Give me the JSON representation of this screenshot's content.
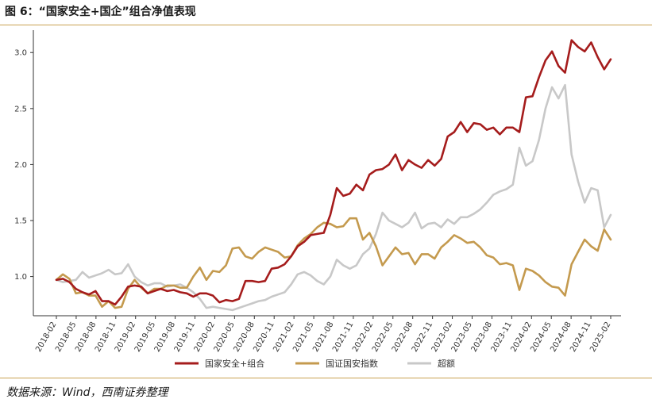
{
  "figure": {
    "title": "图 6：“国家安全+国企”组合净值表现",
    "source": "数据来源：Wind，西南证券整理"
  },
  "chart_data": {
    "type": "line",
    "title": "",
    "xlabel": "",
    "ylabel": "",
    "ylim": [
      0.65,
      3.2
    ],
    "yticks": [
      1.0,
      1.5,
      2.0,
      2.5,
      3.0
    ],
    "ytick_labels": [
      "1.0",
      "1.5",
      "2.0",
      "2.5",
      "3.0"
    ],
    "xtick_labels": [
      "2018-02",
      "2018-05",
      "2018-08",
      "2018-11",
      "2019-02",
      "2019-05",
      "2019-08",
      "2019-11",
      "2020-02",
      "2020-05",
      "2020-08",
      "2020-11",
      "2021-02",
      "2021-05",
      "2021-08",
      "2021-11",
      "2022-02",
      "2022-05",
      "2022-08",
      "2022-11",
      "2023-02",
      "2023-05",
      "2023-08",
      "2023-11",
      "2024-02",
      "2024-05",
      "2024-08",
      "2024-11",
      "2025-02"
    ],
    "grid": false,
    "legend_position": "bottom",
    "series": [
      {
        "name": "国家安全+组合",
        "color": "#a51c1c",
        "values": [
          0.97,
          0.98,
          0.95,
          0.89,
          0.86,
          0.84,
          0.87,
          0.78,
          0.78,
          0.75,
          0.82,
          0.91,
          0.92,
          0.91,
          0.85,
          0.87,
          0.89,
          0.87,
          0.88,
          0.86,
          0.85,
          0.82,
          0.85,
          0.85,
          0.83,
          0.77,
          0.79,
          0.78,
          0.8,
          0.96,
          0.96,
          0.95,
          0.96,
          1.07,
          1.08,
          1.11,
          1.18,
          1.27,
          1.31,
          1.37,
          1.38,
          1.39,
          1.55,
          1.79,
          1.72,
          1.74,
          1.82,
          1.77,
          1.91,
          1.95,
          1.96,
          2.0,
          2.09,
          1.95,
          2.04,
          2.0,
          1.97,
          2.04,
          1.99,
          2.05,
          2.25,
          2.29,
          2.38,
          2.29,
          2.37,
          2.36,
          2.31,
          2.33,
          2.27,
          2.33,
          2.33,
          2.29,
          2.6,
          2.61,
          2.78,
          2.93,
          3.01,
          2.88,
          2.82,
          3.11,
          3.05,
          3.01,
          3.09,
          2.96,
          2.85,
          2.94
        ]
      },
      {
        "name": "国证国安指数",
        "color": "#c49a4e",
        "values": [
          0.97,
          1.02,
          0.98,
          0.85,
          0.86,
          0.83,
          0.83,
          0.73,
          0.78,
          0.72,
          0.73,
          0.89,
          0.97,
          0.9,
          0.85,
          0.89,
          0.89,
          0.92,
          0.92,
          0.9,
          0.9,
          1.0,
          1.08,
          0.97,
          1.05,
          1.04,
          1.1,
          1.25,
          1.26,
          1.18,
          1.16,
          1.22,
          1.26,
          1.24,
          1.22,
          1.17,
          1.18,
          1.28,
          1.34,
          1.38,
          1.44,
          1.48,
          1.47,
          1.44,
          1.45,
          1.52,
          1.52,
          1.33,
          1.39,
          1.27,
          1.1,
          1.18,
          1.26,
          1.2,
          1.21,
          1.11,
          1.2,
          1.2,
          1.16,
          1.26,
          1.31,
          1.37,
          1.34,
          1.3,
          1.31,
          1.26,
          1.19,
          1.17,
          1.11,
          1.12,
          1.1,
          0.88,
          1.07,
          1.05,
          1.01,
          0.95,
          0.91,
          0.9,
          0.83,
          1.11,
          1.22,
          1.33,
          1.27,
          1.23,
          1.42,
          1.33
        ]
      },
      {
        "name": "超额",
        "color": "#c8c8c8",
        "values": [
          0.97,
          0.95,
          0.96,
          0.97,
          1.04,
          0.99,
          1.01,
          1.03,
          1.06,
          1.02,
          1.03,
          1.11,
          1.0,
          0.95,
          0.92,
          0.94,
          0.94,
          0.91,
          0.92,
          0.93,
          0.9,
          0.86,
          0.8,
          0.72,
          0.73,
          0.72,
          0.71,
          0.7,
          0.72,
          0.74,
          0.76,
          0.78,
          0.79,
          0.82,
          0.84,
          0.86,
          0.93,
          1.02,
          1.04,
          1.01,
          0.96,
          0.93,
          1.0,
          1.15,
          1.1,
          1.07,
          1.1,
          1.2,
          1.25,
          1.38,
          1.57,
          1.5,
          1.47,
          1.44,
          1.48,
          1.57,
          1.43,
          1.47,
          1.48,
          1.44,
          1.51,
          1.47,
          1.53,
          1.53,
          1.56,
          1.6,
          1.66,
          1.73,
          1.76,
          1.78,
          1.82,
          2.15,
          1.99,
          2.03,
          2.22,
          2.5,
          2.69,
          2.59,
          2.71,
          2.09,
          1.85,
          1.66,
          1.79,
          1.77,
          1.44,
          1.55
        ]
      }
    ]
  }
}
